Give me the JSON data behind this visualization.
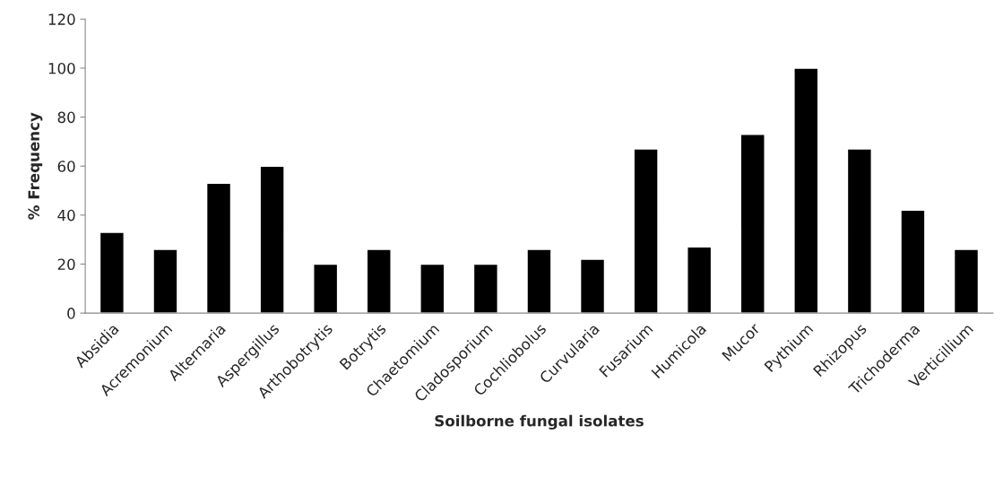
{
  "chart_data": {
    "type": "bar",
    "xlabel": "Soilborne fungal isolates",
    "ylabel": "% Frequency",
    "categories": [
      "Absidia",
      "Acremonium",
      "Alternaria",
      "Aspergillus",
      "Arthobotrytis",
      "Botrytis",
      "Chaetomium",
      "Cladosporium",
      "Cochliobolus",
      "Curvularia",
      "Fusarium",
      "Humicola",
      "Mucor",
      "Pythium",
      "Rhizopus",
      "Trichoderma",
      "Verticillium"
    ],
    "values": [
      33,
      26,
      53,
      60,
      20,
      26,
      20,
      20,
      26,
      22,
      67,
      27,
      73,
      100,
      67,
      42,
      26
    ],
    "color": "#000000",
    "ylim": [
      0,
      120
    ],
    "yticks": [
      0,
      20,
      40,
      60,
      80,
      100,
      120
    ],
    "grid": false
  }
}
